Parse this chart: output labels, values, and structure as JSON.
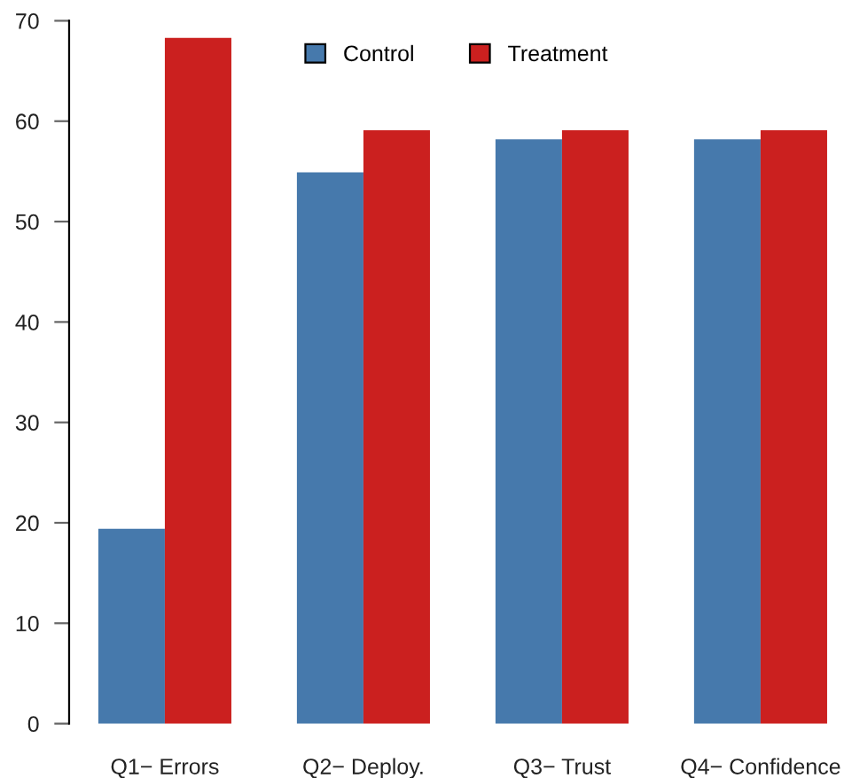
{
  "chart_data": {
    "type": "bar",
    "categories": [
      "Q1− Errors",
      "Q2− Deploy.",
      "Q3− Trust",
      "Q4− Confidence"
    ],
    "series": [
      {
        "name": "Control",
        "color": "#4679ac",
        "values": [
          19.4,
          54.9,
          58.2,
          58.2
        ]
      },
      {
        "name": "Treatment",
        "color": "#cb201f",
        "values": [
          68.3,
          59.1,
          59.1,
          59.1
        ]
      }
    ],
    "ylim": [
      0,
      70
    ],
    "yticks": [
      0,
      10,
      20,
      30,
      40,
      50,
      60,
      70
    ],
    "grid": false,
    "legend": "top"
  }
}
